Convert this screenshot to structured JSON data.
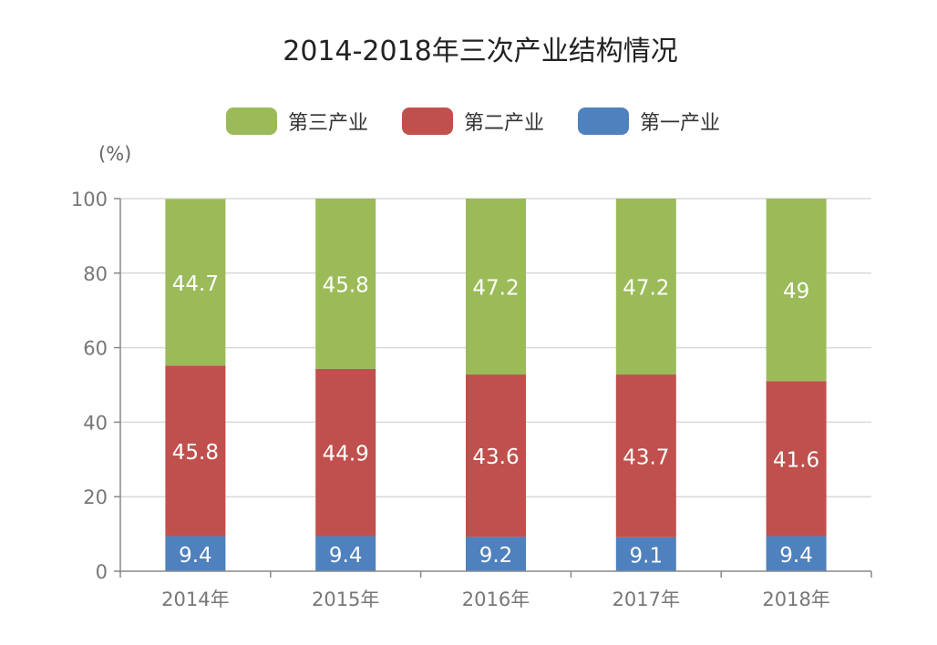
{
  "chart_data": {
    "type": "bar",
    "stacked": true,
    "title": "2014-2018年三次产业结构情况",
    "ylabel": "(%)",
    "ylim": [
      0,
      100
    ],
    "yticks": [
      "0",
      "20",
      "40",
      "60",
      "80",
      "100"
    ],
    "categories": [
      "2014年",
      "2015年",
      "2016年",
      "2017年",
      "2018年"
    ],
    "legend_position": "top-center",
    "legend": [
      "第三产业",
      "第二产业",
      "第一产业"
    ],
    "series": [
      {
        "name": "第一产业",
        "color": "#4e81bd",
        "values": [
          9.4,
          9.4,
          9.2,
          9.1,
          9.4
        ]
      },
      {
        "name": "第二产业",
        "color": "#c0504d",
        "values": [
          45.8,
          44.9,
          43.6,
          43.7,
          41.6
        ]
      },
      {
        "name": "第三产业",
        "color": "#9bbb59",
        "values": [
          44.7,
          45.8,
          47.2,
          47.2,
          49
        ]
      }
    ],
    "grid": true,
    "data_labels": true
  }
}
